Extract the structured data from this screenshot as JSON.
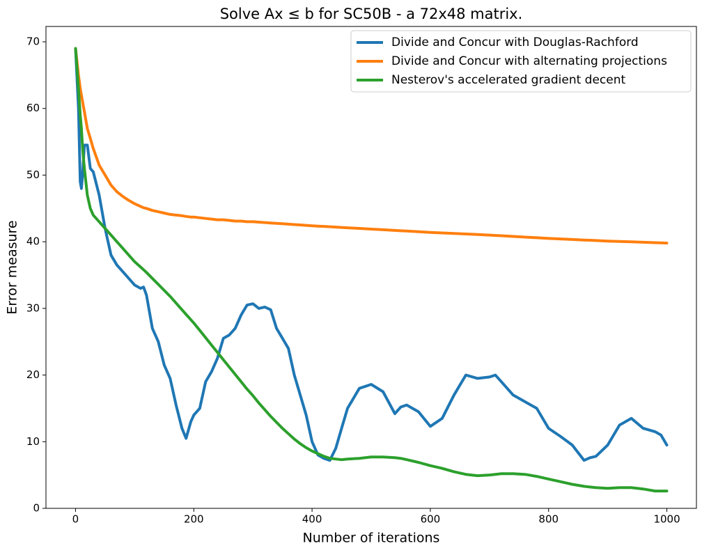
{
  "chart_data": {
    "type": "line",
    "title": "Solve Ax ≤ b for SC50B - a 72x48 matrix.",
    "xlabel": "Number of iterations",
    "ylabel": "Error measure",
    "x": [
      0,
      5,
      8,
      10,
      12,
      15,
      20,
      25,
      30,
      40,
      50,
      60,
      70,
      80,
      90,
      100,
      110,
      115,
      120,
      130,
      140,
      150,
      160,
      170,
      180,
      187,
      195,
      200,
      210,
      220,
      230,
      240,
      250,
      260,
      270,
      280,
      290,
      300,
      310,
      320,
      330,
      340,
      350,
      360,
      370,
      380,
      390,
      400,
      410,
      420,
      430,
      440,
      450,
      460,
      480,
      500,
      520,
      540,
      550,
      560,
      580,
      600,
      620,
      640,
      660,
      680,
      700,
      710,
      720,
      740,
      760,
      780,
      800,
      820,
      840,
      860,
      870,
      880,
      900,
      920,
      940,
      960,
      980,
      990,
      1000
    ],
    "series": [
      {
        "name": "Divide and Concur with Douglas-Rachford",
        "color": "#1f77b4",
        "values": [
          69,
          60,
          49,
          48,
          50,
          54.5,
          54.5,
          51,
          50.5,
          47,
          42,
          38,
          36.5,
          35.5,
          34.5,
          33.5,
          33,
          33.2,
          32,
          27,
          25,
          21.5,
          19.5,
          15.5,
          12,
          10.5,
          13,
          14,
          15,
          19,
          20.5,
          22.5,
          25.5,
          26,
          27,
          29,
          30.5,
          30.7,
          30,
          30.2,
          29.8,
          27,
          25.5,
          24,
          20,
          17,
          14,
          10,
          8,
          7.5,
          7.2,
          9,
          12,
          15,
          18,
          18.6,
          17.5,
          14.2,
          15.2,
          15.5,
          14.5,
          12.3,
          13.5,
          17,
          20,
          19.5,
          19.7,
          20,
          19,
          17,
          16,
          15,
          12,
          10.8,
          9.5,
          7.2,
          7.6,
          7.8,
          9.5,
          12.5,
          13.5,
          12,
          11.5,
          11,
          9.5
        ]
      },
      {
        "name": "Divide and Concur with alternating projections",
        "color": "#ff7f0e",
        "values": [
          69,
          65,
          63,
          62,
          61,
          59.5,
          57,
          55.5,
          54,
          51.5,
          50,
          48.5,
          47.5,
          46.8,
          46.2,
          45.7,
          45.3,
          45.1,
          45,
          44.7,
          44.5,
          44.3,
          44.1,
          44,
          43.9,
          43.8,
          43.7,
          43.7,
          43.6,
          43.5,
          43.4,
          43.3,
          43.3,
          43.2,
          43.1,
          43.1,
          43,
          43,
          42.94,
          42.88,
          42.82,
          42.76,
          42.7,
          42.64,
          42.58,
          42.52,
          42.46,
          42.4,
          42.35,
          42.3,
          42.25,
          42.2,
          42.15,
          42.1,
          42,
          41.9,
          41.8,
          41.7,
          41.65,
          41.6,
          41.5,
          41.4,
          41.32,
          41.24,
          41.16,
          41.08,
          41,
          40.95,
          40.9,
          40.8,
          40.7,
          40.6,
          40.5,
          40.42,
          40.34,
          40.26,
          40.22,
          40.18,
          40.1,
          40.04,
          39.98,
          39.92,
          39.86,
          39.83,
          39.8
        ]
      },
      {
        "name": "Nesterov's accelerated gradient decent",
        "color": "#2ca02c",
        "values": [
          69,
          63,
          59,
          57,
          54,
          51,
          47,
          45,
          44,
          43,
          42,
          41,
          40,
          39,
          38,
          37,
          36.2,
          35.8,
          35.4,
          34.5,
          33.6,
          32.7,
          31.8,
          30.8,
          29.8,
          29.1,
          28.3,
          27.8,
          26.7,
          25.6,
          24.5,
          23.4,
          22.3,
          21.2,
          20.1,
          19,
          17.9,
          16.9,
          15.8,
          14.8,
          13.8,
          12.9,
          12,
          11.2,
          10.4,
          9.7,
          9.1,
          8.6,
          8.2,
          7.8,
          7.5,
          7.4,
          7.3,
          7.4,
          7.5,
          7.7,
          7.7,
          7.6,
          7.5,
          7.3,
          6.9,
          6.4,
          6.0,
          5.5,
          5.1,
          4.9,
          5.0,
          5.1,
          5.2,
          5.2,
          5.1,
          4.8,
          4.4,
          4.0,
          3.6,
          3.3,
          3.2,
          3.1,
          3.0,
          3.1,
          3.1,
          2.9,
          2.6,
          2.6,
          2.6
        ]
      }
    ],
    "xlim": [
      -50,
      1050
    ],
    "xticks": [
      0,
      200,
      400,
      600,
      800,
      1000
    ],
    "ylim": [
      0,
      72.3
    ],
    "yticks": [
      0,
      10,
      20,
      30,
      40,
      50,
      60,
      70
    ],
    "legend": "upper right",
    "grid": false
  }
}
